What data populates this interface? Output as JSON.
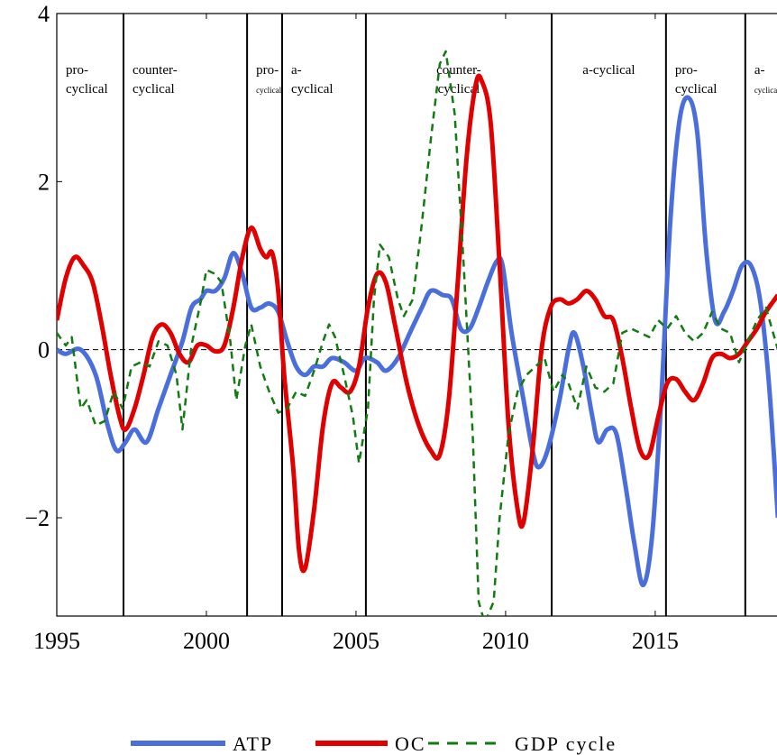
{
  "chart_data": {
    "type": "line",
    "xlim": [
      1995,
      2019.07
    ],
    "ylim": [
      -3.17,
      4
    ],
    "xticks": [
      1995,
      2000,
      2005,
      2010,
      2015
    ],
    "yticks": [
      {
        "value": -2,
        "label": "−2"
      },
      0,
      2,
      4
    ],
    "zero_line": true,
    "regime_breaks": [
      1997.23,
      2001.36,
      2002.53,
      2005.33,
      2011.54,
      2015.36,
      2018.01
    ],
    "regimes": [
      {
        "lines": [
          "pro-",
          "cyclical"
        ],
        "small": false
      },
      {
        "lines": [
          "counter-",
          "cyclical"
        ],
        "small": false
      },
      {
        "lines": [
          "pro-",
          "cyclical"
        ],
        "small": true
      },
      {
        "lines": [
          "a-",
          "cyclical"
        ],
        "small": false
      },
      {
        "lines": [
          "counter-",
          "cyclical"
        ],
        "small": false,
        "center": true
      },
      {
        "lines": [
          "a-cyclical"
        ],
        "small": false,
        "center": true
      },
      {
        "lines": [
          "pro-",
          "cyclical"
        ],
        "small": false
      },
      {
        "lines": [
          "a-",
          "cyclical"
        ],
        "small": true
      }
    ],
    "series": [
      {
        "name": "ATP",
        "color": "#4a6fdc",
        "dashed": false,
        "x": [
          1995,
          1995.3,
          1995.8,
          1996.3,
          1996.7,
          1997,
          1997.3,
          1997.6,
          1998,
          1998.4,
          1998.8,
          1999.2,
          1999.5,
          1999.8,
          2000,
          2000.3,
          2000.6,
          2000.9,
          2001.2,
          2001.5,
          2001.8,
          2002.1,
          2002.4,
          2002.7,
          2003,
          2003.3,
          2003.6,
          2003.9,
          2004.2,
          2004.6,
          2005,
          2005.3,
          2005.7,
          2006,
          2006.4,
          2006.8,
          2007.2,
          2007.5,
          2007.9,
          2008.2,
          2008.5,
          2008.8,
          2009.1,
          2009.4,
          2009.7,
          2009.9,
          2010.2,
          2010.6,
          2010.9,
          2011.1,
          2011.4,
          2011.8,
          2012.1,
          2012.3,
          2012.6,
          2012.9,
          2013.1,
          2013.4,
          2013.7,
          2014,
          2014.3,
          2014.6,
          2014.9,
          2015.2,
          2015.5,
          2015.8,
          2016.1,
          2016.4,
          2016.7,
          2017,
          2017.3,
          2017.6,
          2017.9,
          2018.2,
          2018.5,
          2018.8,
          2019.1
        ],
        "values": [
          0,
          -0.05,
          0,
          -0.3,
          -0.9,
          -1.2,
          -1.1,
          -0.95,
          -1.1,
          -0.7,
          -0.3,
          0.1,
          0.5,
          0.6,
          0.7,
          0.7,
          0.85,
          1.15,
          0.9,
          0.5,
          0.5,
          0.55,
          0.45,
          0.1,
          -0.2,
          -0.3,
          -0.2,
          -0.2,
          -0.1,
          -0.15,
          -0.25,
          -0.1,
          -0.15,
          -0.25,
          -0.1,
          0.2,
          0.5,
          0.7,
          0.65,
          0.6,
          0.25,
          0.25,
          0.5,
          0.8,
          1.05,
          1.0,
          0.2,
          -0.6,
          -1.2,
          -1.4,
          -1.2,
          -0.6,
          0,
          0.2,
          -0.2,
          -0.8,
          -1.1,
          -0.95,
          -1.0,
          -1.6,
          -2.3,
          -2.8,
          -2.2,
          -0.6,
          1.5,
          2.7,
          3.0,
          2.6,
          1.2,
          0.35,
          0.45,
          0.7,
          1.0,
          1.0,
          0.6,
          -0.4,
          -2.0
        ]
      },
      {
        "name": "OC",
        "color": "#e00000",
        "dashed": false,
        "x": [
          1995,
          1995.3,
          1995.6,
          1995.9,
          1996.2,
          1996.5,
          1996.8,
          1997.1,
          1997.3,
          1997.6,
          1997.9,
          1998.2,
          1998.5,
          1998.8,
          1999.1,
          1999.4,
          1999.7,
          2000,
          2000.3,
          2000.6,
          2000.9,
          2001.2,
          2001.5,
          2001.8,
          2002,
          2002.2,
          2002.4,
          2002.6,
          2002.9,
          2003.1,
          2003.3,
          2003.6,
          2003.9,
          2004.2,
          2004.5,
          2004.8,
          2005.1,
          2005.4,
          2005.7,
          2006,
          2006.3,
          2006.7,
          2007.1,
          2007.5,
          2007.8,
          2008.1,
          2008.4,
          2008.7,
          2009,
          2009.2,
          2009.5,
          2009.8,
          2010.1,
          2010.4,
          2010.6,
          2010.9,
          2011.2,
          2011.5,
          2011.8,
          2012.1,
          2012.4,
          2012.7,
          2013,
          2013.3,
          2013.6,
          2013.9,
          2014.2,
          2014.5,
          2014.8,
          2015.1,
          2015.4,
          2015.7,
          2016,
          2016.3,
          2016.6,
          2016.9,
          2017.2,
          2017.5,
          2017.8,
          2018.1,
          2018.4,
          2018.7,
          2019.1
        ],
        "values": [
          0.35,
          0.85,
          1.1,
          1.0,
          0.8,
          0.3,
          -0.3,
          -0.8,
          -0.95,
          -0.7,
          -0.3,
          0.15,
          0.3,
          0.2,
          -0.05,
          -0.15,
          0.05,
          0.05,
          -0.02,
          0.05,
          0.5,
          1.1,
          1.45,
          1.2,
          1.1,
          1.15,
          0.7,
          -0.3,
          -1.4,
          -2.4,
          -2.6,
          -1.9,
          -0.9,
          -0.4,
          -0.45,
          -0.5,
          -0.2,
          0.5,
          0.9,
          0.8,
          0.3,
          -0.4,
          -0.9,
          -1.2,
          -1.25,
          -0.6,
          0.8,
          2.3,
          3.15,
          3.2,
          2.7,
          1.0,
          -0.9,
          -1.9,
          -2.05,
          -1.2,
          0,
          0.5,
          0.6,
          0.55,
          0.6,
          0.7,
          0.6,
          0.4,
          0.35,
          -0.1,
          -0.7,
          -1.2,
          -1.25,
          -0.8,
          -0.4,
          -0.35,
          -0.5,
          -0.6,
          -0.4,
          -0.1,
          -0.05,
          -0.1,
          -0.05,
          0.1,
          0.25,
          0.45,
          0.65
        ]
      },
      {
        "name": "GDP cycle",
        "color": "#127a12",
        "dashed": true,
        "x": [
          1995,
          1995.3,
          1995.5,
          1995.8,
          1996,
          1996.3,
          1996.6,
          1996.9,
          1997.2,
          1997.5,
          1997.8,
          1998.1,
          1998.4,
          1998.7,
          1999,
          1999.2,
          1999.5,
          1999.8,
          2000,
          2000.3,
          2000.5,
          2000.8,
          2001,
          2001.3,
          2001.5,
          2001.8,
          2002.1,
          2002.4,
          2002.7,
          2003,
          2003.3,
          2003.6,
          2003.9,
          2004.1,
          2004.3,
          2004.6,
          2004.9,
          2005.1,
          2005.4,
          2005.6,
          2005.8,
          2006.1,
          2006.4,
          2006.6,
          2006.9,
          2007.2,
          2007.5,
          2007.8,
          2008,
          2008.3,
          2008.6,
          2008.9,
          2009.1,
          2009.3,
          2009.6,
          2009.8,
          2010.1,
          2010.4,
          2010.7,
          2011,
          2011.3,
          2011.6,
          2011.9,
          2012.1,
          2012.4,
          2012.7,
          2013,
          2013.3,
          2013.6,
          2013.9,
          2014.2,
          2014.5,
          2014.8,
          2015.1,
          2015.4,
          2015.7,
          2016,
          2016.3,
          2016.6,
          2016.9,
          2017.2,
          2017.5,
          2017.8,
          2018.1,
          2018.4,
          2018.7,
          2019.1
        ],
        "values": [
          0.2,
          0.05,
          0.15,
          -0.7,
          -0.6,
          -0.9,
          -0.85,
          -0.5,
          -0.7,
          -0.2,
          -0.15,
          -0.2,
          0.1,
          0.05,
          -0.3,
          -0.95,
          0.05,
          0.55,
          0.95,
          0.9,
          0.8,
          0.1,
          -0.6,
          0.05,
          0.3,
          -0.2,
          -0.5,
          -0.75,
          -0.7,
          -0.5,
          -0.55,
          -0.25,
          0.1,
          0.3,
          0.15,
          -0.3,
          -0.8,
          -1.35,
          -0.7,
          0.6,
          1.25,
          1.1,
          0.6,
          0.4,
          0.6,
          1.5,
          2.5,
          3.4,
          3.55,
          2.8,
          1.0,
          -1.0,
          -3.0,
          -3.25,
          -3.0,
          -2.0,
          -1.0,
          -0.5,
          -0.3,
          -0.2,
          -0.1,
          -0.5,
          -0.3,
          -0.4,
          -0.7,
          -0.2,
          -0.45,
          -0.5,
          -0.4,
          0.2,
          0.25,
          0.2,
          0.15,
          0.35,
          0.25,
          0.4,
          0.2,
          0.1,
          0.2,
          0.45,
          0.25,
          0.2,
          -0.15,
          0.1,
          0.35,
          0.5,
          0
        ]
      }
    ]
  }
}
